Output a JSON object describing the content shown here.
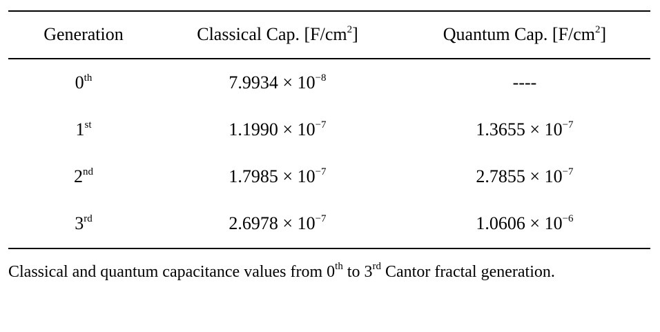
{
  "table": {
    "header": [
      {
        "text": "Generation"
      },
      {
        "text": "Classical Cap. [F/cm",
        "sup": "2",
        "after": "]"
      },
      {
        "text": "Quantum Cap. [F/cm",
        "sup": "2",
        "after": "]"
      }
    ],
    "rows": [
      [
        {
          "text": "0",
          "sup": "th"
        },
        {
          "text": "7.9934 × 10",
          "sup": "−8"
        },
        {
          "text": "----"
        }
      ],
      [
        {
          "text": "1",
          "sup": "st"
        },
        {
          "text": "1.1990 × 10",
          "sup": "−7"
        },
        {
          "text": "1.3655 × 10",
          "sup": "−7"
        }
      ],
      [
        {
          "text": "2",
          "sup": "nd"
        },
        {
          "text": "1.7985 × 10",
          "sup": "−7"
        },
        {
          "text": "2.7855 × 10",
          "sup": "−7"
        }
      ],
      [
        {
          "text": "3",
          "sup": "rd"
        },
        {
          "text": "2.6978 × 10",
          "sup": "−7"
        },
        {
          "text": "1.0606 × 10",
          "sup": "−6"
        }
      ]
    ]
  },
  "caption": [
    {
      "text": "Classical and quantum capacitance values from 0",
      "sup": "th"
    },
    {
      "text": " to 3",
      "sup": "rd"
    },
    {
      "text": " Cantor fractal generation."
    }
  ]
}
